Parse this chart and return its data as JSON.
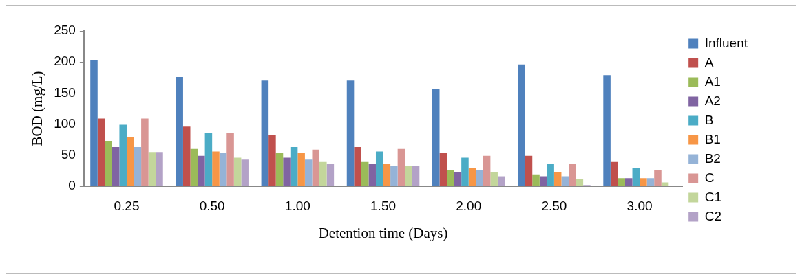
{
  "chart_data": {
    "type": "bar",
    "xlabel": "Detention time (Days)",
    "ylabel": "BOD (mg/L)",
    "categories": [
      "0.25",
      "0.50",
      "1.00",
      "1.50",
      "2.00",
      "2.50",
      "3.00"
    ],
    "ylim": [
      0,
      250
    ],
    "yticks": [
      0,
      50,
      100,
      150,
      200,
      250
    ],
    "grid": false,
    "legend": "right",
    "series": [
      {
        "name": "Influent",
        "color": "#4f81bd",
        "values": [
          203,
          176,
          170,
          170,
          156,
          196,
          179
        ]
      },
      {
        "name": "A",
        "color": "#c0504d",
        "values": [
          109,
          96,
          83,
          63,
          53,
          49,
          39
        ]
      },
      {
        "name": "A1",
        "color": "#9bbb59",
        "values": [
          73,
          60,
          53,
          39,
          26,
          19,
          13
        ]
      },
      {
        "name": "A2",
        "color": "#8064a2",
        "values": [
          63,
          49,
          46,
          36,
          23,
          16,
          13
        ]
      },
      {
        "name": "B",
        "color": "#4bacc6",
        "values": [
          99,
          86,
          63,
          56,
          46,
          36,
          29
        ]
      },
      {
        "name": "B1",
        "color": "#f79646",
        "values": [
          79,
          56,
          53,
          36,
          29,
          23,
          13
        ]
      },
      {
        "name": "B2",
        "color": "#95b3d7",
        "values": [
          63,
          53,
          43,
          33,
          26,
          16,
          13
        ]
      },
      {
        "name": "C",
        "color": "#d99694",
        "values": [
          109,
          86,
          59,
          60,
          49,
          36,
          26
        ]
      },
      {
        "name": "C1",
        "color": "#c3d69b",
        "values": [
          55,
          46,
          39,
          33,
          23,
          12,
          6
        ]
      },
      {
        "name": "C2",
        "color": "#b3a2c7",
        "values": [
          55,
          43,
          36,
          33,
          16,
          2,
          0
        ]
      }
    ]
  }
}
